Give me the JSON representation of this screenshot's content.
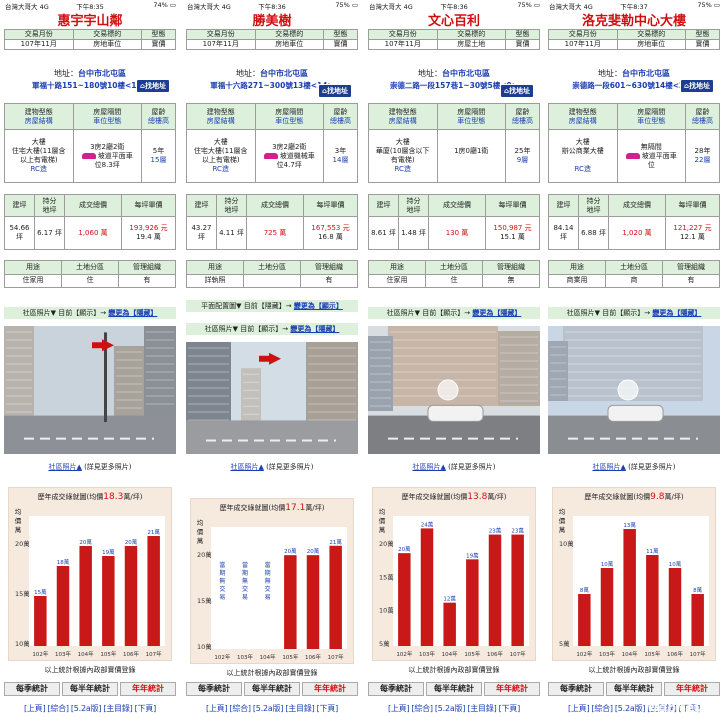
{
  "screens": [
    {
      "status": {
        "carrier": "台灣大哥大",
        "network": "4G",
        "time": "下午8:35",
        "battery": "74%"
      },
      "title": "惠宇宇山鄰",
      "trade": {
        "h1": "交易月份",
        "h2": "交易標的",
        "h3": "型態",
        "v1": "107年11月",
        "v2": "房地車位",
        "v3": "實價"
      },
      "address": {
        "label": "地址：",
        "city": "台中市北屯區",
        "road": "軍福十路151~180號10樓<15>",
        "map_btn": "找地址"
      },
      "building": {
        "h1a": "建物型態",
        "h1b": "房屋結構",
        "h2a": "房屋隔間",
        "h2b": "車位型態",
        "h3a": "屋齡",
        "h3b": "總樓高",
        "v1a": "大樓",
        "v1b": "住宅大樓(11層含",
        "v1c": "以上有電梯)",
        "v1d": "RC造",
        "v2a": "3房2廳2衛",
        "v2b": "坡道平面車",
        "v2c": "位8.3坪",
        "v3a": "5年",
        "v3b": "15層"
      },
      "price": {
        "h1": "建坪",
        "h2": "持分",
        "h2b": "地坪",
        "h3": "成交總價",
        "h4": "每坪單價",
        "v1a": "54.66",
        "v1b": "坪",
        "v2": "6.17 坪",
        "v3": "1,060 萬",
        "v4a": "193,926 元",
        "v4b": "19.4 萬"
      },
      "use": {
        "h1": "用途",
        "h2": "土地分區",
        "h3": "管理組織",
        "v1": "住家用",
        "v2": "住",
        "v3": "有"
      },
      "photo_toggle": {
        "prefix": "社區照片▼ 目前【顯示】→",
        "link": "變更為【隱藏】"
      },
      "photo_link": {
        "text": "社區照片▲",
        "more": "(詳見更多照片)"
      },
      "chart_data": {
        "type": "bar",
        "title_prefix": "歷年成交綠就圖(均價",
        "title_value": "18.3",
        "title_suffix": "萬/坪)",
        "ylabel": "均價萬",
        "categories": [
          "102年",
          "103年",
          "104年",
          "105年",
          "106年",
          "107年"
        ],
        "values": [
          15,
          18,
          20,
          19,
          20,
          21
        ],
        "labels": [
          "15萬",
          "18萬",
          "20萬",
          "19萬",
          "20萬",
          "21萬"
        ],
        "ylim": [
          10,
          23
        ],
        "yticks": [
          "20",
          "15",
          "10"
        ]
      },
      "note": "以上統計根據內政部實價登錄",
      "buttons": [
        "每季統計",
        "每半年統計",
        "年年統計"
      ],
      "nav": [
        "[上頁]",
        "[綜合]",
        "[5.2a版]",
        "[主目錄]",
        "[下頁]"
      ]
    },
    {
      "status": {
        "carrier": "台灣大哥大",
        "network": "4G",
        "time": "下午8:36",
        "battery": "75%"
      },
      "title": "勝美樹",
      "trade": {
        "h1": "交易月份",
        "h2": "交易標的",
        "h3": "型態",
        "v1": "107年11月",
        "v2": "房地車位",
        "v3": "實價"
      },
      "address": {
        "label": "地址：",
        "city": "台中市北屯區",
        "road": "軍福十六路271~300號13樓<14>",
        "map_btn": "找地址"
      },
      "building": {
        "h1a": "建物型態",
        "h1b": "房屋結構",
        "h2a": "房屋隔間",
        "h2b": "車位型態",
        "h3a": "屋齡",
        "h3b": "總樓高",
        "v1a": "大樓",
        "v1b": "住宅大樓(11層含",
        "v1c": "以上有電梯)",
        "v1d": "RC造",
        "v2a": "3房2廳2衛",
        "v2b": "坡道機械車",
        "v2c": "位4.7坪",
        "v3a": "3年",
        "v3b": "14層"
      },
      "price": {
        "h1": "建坪",
        "h2": "持分",
        "h2b": "地坪",
        "h3": "成交總價",
        "h4": "每坪單價",
        "v1a": "43.27",
        "v1b": "坪",
        "v2": "4.11 坪",
        "v3": "725 萬",
        "v4a": "167,553 元",
        "v4b": "16.8 萬"
      },
      "use": {
        "h1": "用途",
        "h2": "土地分區",
        "h3": "管理組織",
        "v1": "詳執照",
        "v2": "",
        "v3": "有"
      },
      "floor_toggle": {
        "prefix": "平面配置圖▼ 目前【隱藏】→",
        "link": "變更為【顯示】"
      },
      "photo_toggle": {
        "prefix": "社區照片▼ 目前【顯示】→",
        "link": "變更為【隱藏】"
      },
      "photo_link": {
        "text": "社區照片▲",
        "more": "(詳見更多照片)"
      },
      "chart_data": {
        "type": "bar",
        "title_prefix": "歷年成交綠就圖(均價",
        "title_value": "17.1",
        "title_suffix": "萬/坪)",
        "ylabel": "均價萬",
        "categories": [
          "102年",
          "103年",
          "104年",
          "105年",
          "106年",
          "107年"
        ],
        "values": [
          null,
          null,
          null,
          20,
          20,
          21
        ],
        "labels": [
          "",
          "",
          "",
          "20萬",
          "20萬",
          "21萬"
        ],
        "nodata": "當期無交易",
        "ylim": [
          10,
          23
        ],
        "yticks": [
          "20",
          "15",
          "10"
        ]
      },
      "note": "以上統計根據內政部實價登錄",
      "buttons": [
        "每季統計",
        "每半年統計",
        "年年統計"
      ],
      "nav": [
        "[上頁]",
        "[綜合]",
        "[5.2a版]",
        "[主目錄]",
        "[下頁]"
      ]
    },
    {
      "status": {
        "carrier": "台灣大哥大",
        "network": "4G",
        "time": "下午8:36",
        "battery": "75%"
      },
      "title": "文心百利",
      "trade": {
        "h1": "交易月份",
        "h2": "交易標的",
        "h3": "型態",
        "v1": "107年11月",
        "v2": "房屋土地",
        "v3": "實價"
      },
      "address": {
        "label": "地址：",
        "city": "台中市北屯區",
        "road": "崇德二路一段157巷1~30號5樓<9>",
        "map_btn": "找地址"
      },
      "building": {
        "h1a": "建物型態",
        "h1b": "房屋結構",
        "h2a": "房屋隔間",
        "h2b": "車位型態",
        "h3a": "屋齡",
        "h3b": "總樓高",
        "v1a": "大樓",
        "v1b": "華廈(10層含以下",
        "v1c": "有電梯)",
        "v1d": "RC造",
        "v2a": "1房0廳1衛",
        "v2b": "",
        "v2c": "",
        "v3a": "25年",
        "v3b": "9層"
      },
      "price": {
        "h1": "建坪",
        "h2": "持分",
        "h2b": "地坪",
        "h3": "成交總價",
        "h4": "每坪單價",
        "v1a": "8.61 坪",
        "v1b": "",
        "v2": "1.48 坪",
        "v3": "130 萬",
        "v4a": "150,987 元",
        "v4b": "15.1 萬"
      },
      "use": {
        "h1": "用途",
        "h2": "土地分區",
        "h3": "管理組織",
        "v1": "住家用",
        "v2": "住",
        "v3": "無"
      },
      "photo_toggle": {
        "prefix": "社區照片▼ 目前【顯示】→",
        "link": "變更為【隱藏】"
      },
      "photo_link": {
        "text": "社區照片▲",
        "more": "(詳見更多照片)"
      },
      "chart_data": {
        "type": "bar",
        "title_prefix": "歷年成交綠就圖(均價",
        "title_value": "13.8",
        "title_suffix": "萬/坪)",
        "ylabel": "均價萬",
        "categories": [
          "102年",
          "103年",
          "104年",
          "105年",
          "106年",
          "107年"
        ],
        "values": [
          20,
          24,
          12,
          19,
          23,
          23
        ],
        "labels": [
          "20萬",
          "24萬",
          "12萬",
          "19萬",
          "23萬",
          "23萬"
        ],
        "ylim": [
          5,
          26
        ],
        "yticks": [
          "20",
          "15",
          "10",
          "5"
        ]
      },
      "note": "以上統計根據內政部實價登錄",
      "buttons": [
        "每季統計",
        "每半年統計",
        "年年統計"
      ],
      "nav": [
        "[上頁]",
        "[綜合]",
        "[5.2a版]",
        "[主目錄]",
        "[下頁]"
      ]
    },
    {
      "status": {
        "carrier": "台灣大哥大",
        "network": "4G",
        "time": "下午8:37",
        "battery": "75%"
      },
      "title": "洛克斐勒中心大樓",
      "trade": {
        "h1": "交易月份",
        "h2": "交易標的",
        "h3": "型態",
        "v1": "107年11月",
        "v2": "房地車位",
        "v3": "實價"
      },
      "address": {
        "label": "地址：",
        "city": "台中市北屯區",
        "road": "崇德路一段601~630號14樓<22>",
        "map_btn": "找地址"
      },
      "building": {
        "h1a": "建物型態",
        "h1b": "房屋結構",
        "h2a": "房屋隔間",
        "h2b": "車位型態",
        "h3a": "屋齡",
        "h3b": "總樓高",
        "v1a": "大樓",
        "v1b": "辦公商業大樓",
        "v1c": "",
        "v1d": "RC造",
        "v2a": "無隔間",
        "v2b": "坡道平面車",
        "v2c": "位",
        "v3a": "28年",
        "v3b": "22層"
      },
      "price": {
        "h1": "建坪",
        "h2": "持分",
        "h2b": "地坪",
        "h3": "成交總價",
        "h4": "每坪單價",
        "v1a": "84.14",
        "v1b": "坪",
        "v2": "6.88 坪",
        "v3": "1,020 萬",
        "v4a": "121,227 元",
        "v4b": "12.1 萬"
      },
      "use": {
        "h1": "用途",
        "h2": "土地分區",
        "h3": "管理組織",
        "v1": "商業用",
        "v2": "商",
        "v3": "有"
      },
      "photo_toggle": {
        "prefix": "社區照片▼ 目前【顯示】→",
        "link": "變更為【隱藏】"
      },
      "photo_link": {
        "text": "社區照片▲",
        "more": "(詳見更多照片)"
      },
      "chart_data": {
        "type": "bar",
        "title_prefix": "歷年成交綠就圖(均價",
        "title_value": "9.8",
        "title_suffix": "萬/坪)",
        "ylabel": "均價萬",
        "categories": [
          "102年",
          "103年",
          "104年",
          "105年",
          "106年",
          "107年"
        ],
        "values": [
          8,
          10,
          13,
          11,
          10,
          8
        ],
        "labels": [
          "8萬",
          "10萬",
          "13萬",
          "11萬",
          "10萬",
          "8萬"
        ],
        "ylim": [
          4,
          14
        ],
        "yticks": [
          "10",
          "5"
        ]
      },
      "note": "以上統計根據內政部實價登錄",
      "buttons": [
        "每季統計",
        "每半年統計",
        "年年統計"
      ],
      "nav": [
        "[上頁]",
        "[綜合]",
        "[5.2a版]",
        "[主目錄]",
        "[下頁]"
      ]
    }
  ],
  "colors": {
    "accent_red": "#d01010",
    "link_blue": "#1a3fb0",
    "header_green": "#dcf0dc",
    "bar_red": "#c81818",
    "chart_bg": "#f6eadf"
  },
  "watermark": "Mobile01"
}
